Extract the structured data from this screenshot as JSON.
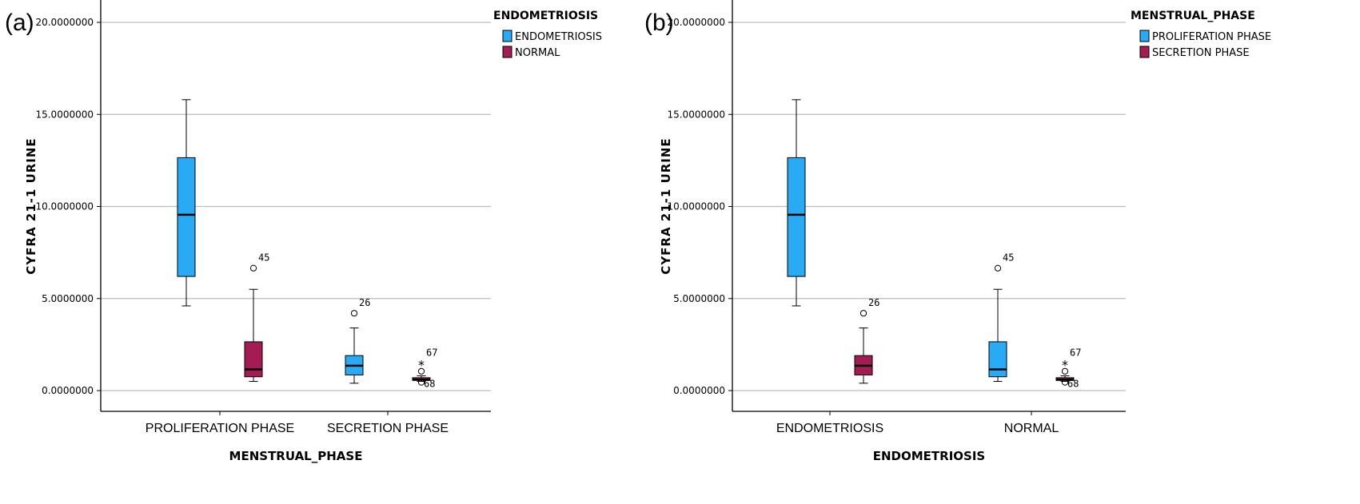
{
  "chart_data": [
    {
      "panel": "(a)",
      "type": "boxplot",
      "ylabel": "CYFRA 21-1 URINE",
      "xlabel": "MENSTRUAL_PHASE",
      "ylim": [
        -1.2,
        20.5
      ],
      "yticks": [
        0,
        5,
        10,
        15,
        20
      ],
      "ytick_labels": [
        "0.0000000",
        "5.0000000",
        "10.0000000",
        "15.0000000",
        "20.0000000"
      ],
      "grid": true,
      "categories": [
        "PROLIFERATION PHASE",
        "SECRETION PHASE"
      ],
      "legend": {
        "title": "ENDOMETRIOSIS",
        "placement": "top-right",
        "entries": [
          {
            "label": "ENDOMETRIOSIS",
            "color": "#29aaf4"
          },
          {
            "label": "NORMAL",
            "color": "#a31d53"
          }
        ]
      },
      "series": [
        {
          "name": "ENDOMETRIOSIS",
          "color": "#29aaf4",
          "boxes": [
            {
              "min": 4.6,
              "q1": 6.2,
              "median": 9.55,
              "q3": 12.65,
              "max": 15.8,
              "outliers": []
            },
            {
              "min": 0.4,
              "q1": 0.85,
              "median": 1.35,
              "q3": 1.9,
              "max": 3.4,
              "outliers": [
                {
                  "value": 4.2,
                  "label": "26",
                  "marker": "circle"
                }
              ]
            }
          ]
        },
        {
          "name": "NORMAL",
          "color": "#a31d53",
          "boxes": [
            {
              "min": 0.5,
              "q1": 0.75,
              "median": 1.15,
              "q3": 2.65,
              "max": 5.5,
              "outliers": [
                {
                  "value": 6.65,
                  "label": "45",
                  "marker": "circle"
                }
              ]
            },
            {
              "min": 0.5,
              "q1": 0.55,
              "median": 0.6,
              "q3": 0.7,
              "max": 0.8,
              "outliers": [
                {
                  "value": 1.05,
                  "label": "",
                  "marker": "circle"
                },
                {
                  "value": 1.5,
                  "label": "67",
                  "marker": "star"
                },
                {
                  "value": 0.45,
                  "label": "68",
                  "marker": "circle"
                }
              ]
            }
          ]
        }
      ]
    },
    {
      "panel": "(b)",
      "type": "boxplot",
      "ylabel": "CYFRA 21-1 URINE",
      "xlabel": "ENDOMETRIOSIS",
      "ylim": [
        -1.2,
        20.5
      ],
      "yticks": [
        0,
        5,
        10,
        15,
        20
      ],
      "ytick_labels": [
        "0.0000000",
        "5.0000000",
        "10.0000000",
        "15.0000000",
        "20.0000000"
      ],
      "grid": true,
      "categories": [
        "ENDOMETRIOSIS",
        "NORMAL"
      ],
      "legend": {
        "title": "MENSTRUAL_PHASE",
        "placement": "top-right",
        "entries": [
          {
            "label": "PROLIFERATION PHASE",
            "color": "#29aaf4"
          },
          {
            "label": "SECRETION PHASE",
            "color": "#a31d53"
          }
        ]
      },
      "series": [
        {
          "name": "PROLIFERATION PHASE",
          "color": "#29aaf4",
          "boxes": [
            {
              "min": 4.6,
              "q1": 6.2,
              "median": 9.55,
              "q3": 12.65,
              "max": 15.8,
              "outliers": []
            },
            {
              "min": 0.5,
              "q1": 0.75,
              "median": 1.15,
              "q3": 2.65,
              "max": 5.5,
              "outliers": [
                {
                  "value": 6.65,
                  "label": "45",
                  "marker": "circle"
                }
              ]
            }
          ]
        },
        {
          "name": "SECRETION PHASE",
          "color": "#a31d53",
          "boxes": [
            {
              "min": 0.4,
              "q1": 0.85,
              "median": 1.35,
              "q3": 1.9,
              "max": 3.4,
              "outliers": [
                {
                  "value": 4.2,
                  "label": "26",
                  "marker": "circle"
                }
              ]
            },
            {
              "min": 0.5,
              "q1": 0.55,
              "median": 0.6,
              "q3": 0.7,
              "max": 0.8,
              "outliers": [
                {
                  "value": 1.05,
                  "label": "",
                  "marker": "circle"
                },
                {
                  "value": 1.5,
                  "label": "67",
                  "marker": "star"
                },
                {
                  "value": 0.45,
                  "label": "68",
                  "marker": "circle"
                }
              ]
            }
          ]
        }
      ]
    }
  ]
}
